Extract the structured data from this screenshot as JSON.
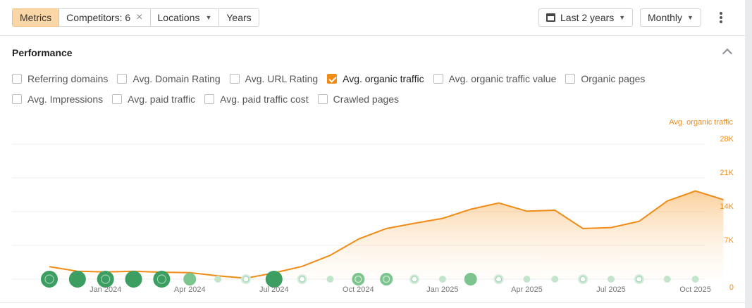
{
  "toolbar": {
    "tabs": [
      {
        "label": "Metrics",
        "active": true
      },
      {
        "label": "Competitors: 6",
        "closable": true
      },
      {
        "label": "Locations",
        "dropdown": true
      },
      {
        "label": "Years"
      }
    ],
    "date_range": "Last 2 years",
    "interval": "Monthly"
  },
  "performance": {
    "title": "Performance",
    "metrics_row1": [
      {
        "label": "Referring domains",
        "checked": false
      },
      {
        "label": "Avg. Domain Rating",
        "checked": false
      },
      {
        "label": "Avg. URL Rating",
        "checked": false
      },
      {
        "label": "Avg. organic traffic",
        "checked": true
      },
      {
        "label": "Avg. organic traffic value",
        "checked": false
      },
      {
        "label": "Organic pages",
        "checked": false
      }
    ],
    "metrics_row2": [
      {
        "label": "Avg. Impressions",
        "checked": false
      },
      {
        "label": "Avg. paid traffic",
        "checked": false
      },
      {
        "label": "Avg. paid traffic cost",
        "checked": false
      },
      {
        "label": "Crawled pages",
        "checked": false
      }
    ]
  },
  "colors": {
    "accent": "#f08c16",
    "active_tab": "#fbd7a7",
    "event_green": "#4caf6e"
  },
  "chart_data": {
    "type": "area",
    "series": [
      {
        "name": "Avg. organic traffic",
        "values": [
          2600,
          1650,
          1500,
          1650,
          1450,
          1350,
          700,
          200,
          1300,
          2650,
          4950,
          8300,
          10500,
          11600,
          12600,
          14500,
          15800,
          14100,
          14300,
          10500,
          10700,
          12000,
          16200,
          18300,
          16500
        ]
      }
    ],
    "x": [
      "2023-11",
      "2023-12",
      "2024-01",
      "2024-02",
      "2024-03",
      "2024-04",
      "2024-05",
      "2024-06",
      "2024-07",
      "2024-08",
      "2024-09",
      "2024-10",
      "2024-11",
      "2024-12",
      "2025-01",
      "2025-02",
      "2025-03",
      "2025-04",
      "2025-05",
      "2025-06",
      "2025-07",
      "2025-08",
      "2025-09",
      "2025-10",
      "2025-11"
    ],
    "x_tick_labels": [
      {
        "label": "Jan 2024",
        "index": 2
      },
      {
        "label": "Apr 2024",
        "index": 5
      },
      {
        "label": "Jul 2024",
        "index": 8
      },
      {
        "label": "Oct 2024",
        "index": 11
      },
      {
        "label": "Jan 2025",
        "index": 14
      },
      {
        "label": "Apr 2025",
        "index": 17
      },
      {
        "label": "Jul 2025",
        "index": 20
      },
      {
        "label": "Oct 2025",
        "index": 23
      }
    ],
    "y_tick_labels": [
      "0",
      "7K",
      "14K",
      "21K",
      "28K"
    ],
    "y_ticks": [
      0,
      7000,
      14000,
      21000,
      28000
    ],
    "ylabel": "Avg. organic traffic",
    "ylim": [
      0,
      28000
    ],
    "grid": true,
    "events": [
      {
        "index": 0,
        "size": "large",
        "glyph": "2"
      },
      {
        "index": 1,
        "size": "large",
        "glyph": ""
      },
      {
        "index": 2,
        "size": "large",
        "glyph": "a"
      },
      {
        "index": 3,
        "size": "large",
        "glyph": ""
      },
      {
        "index": 4,
        "size": "large",
        "glyph": "3"
      },
      {
        "index": 5,
        "size": "medium",
        "glyph": ""
      },
      {
        "index": 6,
        "size": "small",
        "glyph": ""
      },
      {
        "index": 7,
        "size": "ring",
        "glyph": "G"
      },
      {
        "index": 8,
        "size": "large",
        "glyph": ""
      },
      {
        "index": 9,
        "size": "ring",
        "glyph": "2"
      },
      {
        "index": 10,
        "size": "small",
        "glyph": ""
      },
      {
        "index": 11,
        "size": "medium",
        "glyph": "a"
      },
      {
        "index": 12,
        "size": "medium",
        "glyph": "G"
      },
      {
        "index": 13,
        "size": "ring",
        "glyph": "2"
      },
      {
        "index": 14,
        "size": "small",
        "glyph": ""
      },
      {
        "index": 15,
        "size": "medium",
        "glyph": ""
      },
      {
        "index": 16,
        "size": "ring",
        "glyph": "G"
      },
      {
        "index": 17,
        "size": "small",
        "glyph": ""
      },
      {
        "index": 18,
        "size": "small",
        "glyph": ""
      },
      {
        "index": 19,
        "size": "ring",
        "glyph": "G"
      },
      {
        "index": 20,
        "size": "small",
        "glyph": ""
      },
      {
        "index": 21,
        "size": "ring",
        "glyph": "G"
      },
      {
        "index": 22,
        "size": "small",
        "glyph": ""
      },
      {
        "index": 23,
        "size": "small",
        "glyph": ""
      }
    ]
  }
}
